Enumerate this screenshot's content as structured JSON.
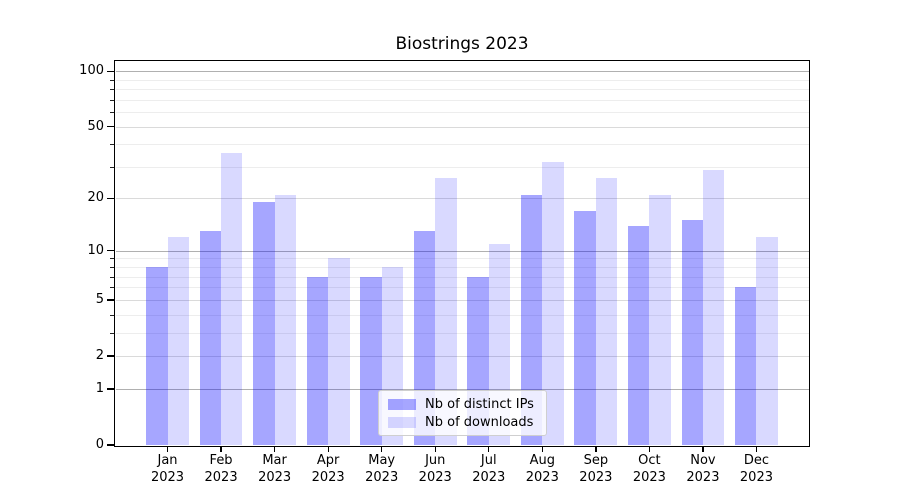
{
  "chart_data": {
    "type": "bar",
    "title": "Biostrings 2023",
    "categories": [
      "Jan",
      "Feb",
      "Mar",
      "Apr",
      "May",
      "Jun",
      "Jul",
      "Aug",
      "Sep",
      "Oct",
      "Nov",
      "Dec"
    ],
    "year": "2023",
    "series": [
      {
        "name": "Nb of distinct IPs",
        "color_hex": "#a6a6ff",
        "fill": "rgba(0,0,255,0.35)",
        "values": [
          8,
          13,
          19,
          7,
          7,
          13,
          7,
          21,
          17,
          14,
          15,
          6
        ]
      },
      {
        "name": "Nb of downloads",
        "color_hex": "#d9d9ff",
        "fill": "rgba(0,0,255,0.15)",
        "values": [
          12,
          36,
          21,
          9,
          8,
          26,
          11,
          32,
          26,
          21,
          29,
          12
        ]
      }
    ],
    "y_axis": {
      "scale": "log1p",
      "ticks": [
        0,
        1,
        2,
        5,
        10,
        20,
        50,
        100
      ],
      "decade_ticks": [
        1,
        10,
        100
      ],
      "minor_ticks": [
        3,
        4,
        6,
        7,
        8,
        9,
        30,
        40,
        60,
        70,
        80,
        90
      ],
      "top_value": 112
    },
    "legend": {
      "position": "lower center"
    }
  }
}
